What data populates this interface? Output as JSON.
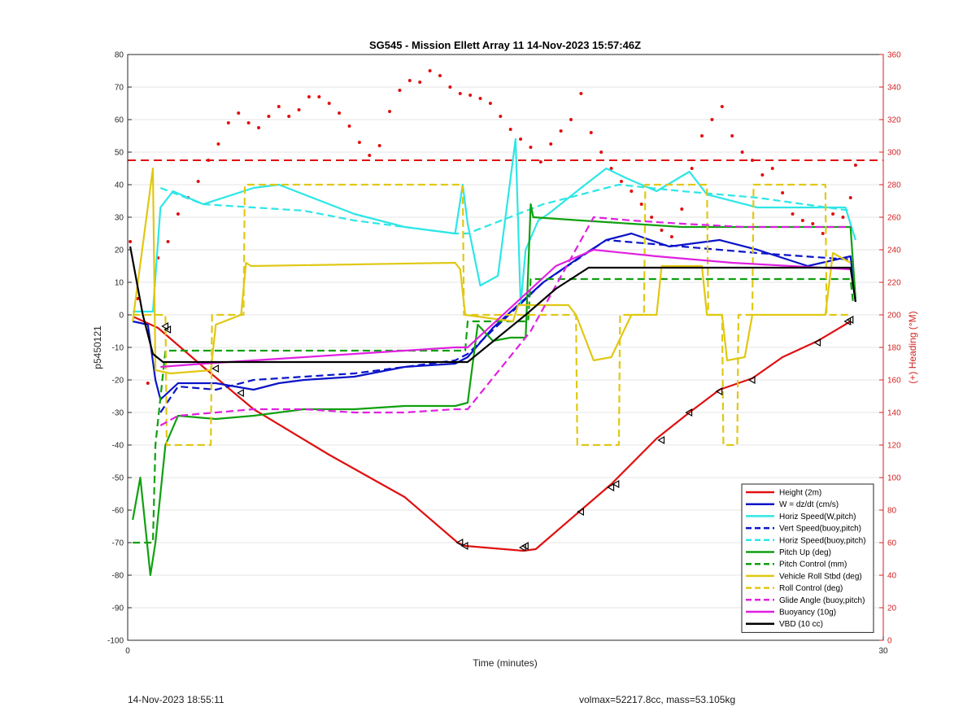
{
  "footer": {
    "timestamp": "14-Nov-2023 18:55:11",
    "mass_info": "volmax=52217.8cc, mass=53.105kg"
  },
  "chart_data": {
    "type": "line",
    "title": "SG545 - Mission Ellett Array 11 14-Nov-2023 15:57:46Z",
    "xlabel": "Time (minutes)",
    "ylabel": "p5450121",
    "y2label": "(+) Heading (°M)",
    "xlim": [
      0,
      30
    ],
    "ylim": [
      -100,
      80
    ],
    "y2lim": [
      0,
      360
    ],
    "x_ticks": [
      0,
      30
    ],
    "y_ticks": [
      -100,
      -90,
      -80,
      -70,
      -60,
      -50,
      -40,
      -30,
      -20,
      -10,
      0,
      10,
      20,
      30,
      40,
      50,
      60,
      70,
      80
    ],
    "y2_ticks": [
      0,
      20,
      40,
      60,
      80,
      100,
      120,
      140,
      160,
      180,
      200,
      220,
      240,
      260,
      280,
      300,
      320,
      340,
      360
    ],
    "legend_position": "bottom-right",
    "colors": {
      "red": "#e01010",
      "blue": "#0a14c8",
      "cyan": "#2ee6e6",
      "green": "#10a010",
      "yellow": "#e0c814",
      "magenta": "#e020e0",
      "black": "#000000",
      "axis_right": "#d22222"
    },
    "series": [
      {
        "name": "Height (2m)",
        "color": "#e01010",
        "style": "solid",
        "x": [
          0.2,
          1.2,
          3,
          5,
          8,
          11,
          13.1,
          13.4,
          15.7,
          16.2,
          18,
          19.2,
          21,
          22.3,
          23.5,
          24.8,
          26,
          27.4,
          28.7
        ],
        "y": [
          -0.5,
          -4,
          -16,
          -29,
          -43,
          -56,
          -70,
          -71,
          -72.5,
          -72,
          -60,
          -52,
          -38,
          -30,
          -23,
          -19.5,
          -13,
          -8,
          -2
        ]
      },
      {
        "name": "W = dz/dt (cm/s)",
        "color": "#0a14c8",
        "style": "solid",
        "x": [
          0.2,
          0.8,
          1.1,
          1.3,
          2,
          3.5,
          5,
          6,
          7,
          9,
          11,
          13,
          13.5,
          14.5,
          15.5,
          16.5,
          18,
          19,
          20,
          21.5,
          22.5,
          23.5,
          25,
          27,
          28.7,
          28.9
        ],
        "y": [
          -2,
          -3,
          -20,
          -26,
          -21,
          -21,
          -23,
          -21,
          -20,
          -19,
          -16,
          -15,
          -13,
          -4,
          3,
          10,
          18,
          23,
          25,
          21,
          22,
          23,
          20,
          15,
          18,
          4
        ]
      },
      {
        "name": "Horiz Speed(W,pitch)",
        "color": "#2ee6e6",
        "style": "solid",
        "x": [
          0.2,
          1.0,
          1.3,
          1.8,
          3,
          5,
          6,
          7,
          9,
          11,
          13,
          13.3,
          13.5,
          14,
          14.7,
          15.4,
          15.6,
          15.8,
          16.3,
          16.7,
          18,
          19,
          19.8,
          21,
          22.3,
          23,
          25,
          27,
          28.5,
          28.9
        ],
        "y": [
          1,
          1,
          33,
          38,
          34,
          39,
          40,
          37,
          31,
          27,
          25,
          40,
          28,
          9,
          12,
          54,
          3,
          20,
          29,
          31,
          39,
          45,
          42,
          38,
          44,
          37,
          33,
          33,
          33,
          23
        ]
      },
      {
        "name": "Vert Speed(buoy,pitch)",
        "color": "#0a14c8",
        "style": "dashed",
        "x": [
          1.3,
          2,
          3.5,
          5,
          7,
          9,
          11,
          13,
          13.5,
          16.5,
          19,
          22,
          25,
          28.7
        ],
        "y": [
          -30,
          -22,
          -23,
          -20,
          -19,
          -18,
          -16,
          -14,
          -12,
          10,
          23,
          21,
          19,
          17
        ]
      },
      {
        "name": "Horiz Speed(buoy,pitch)",
        "color": "#2ee6e6",
        "style": "dashed",
        "x": [
          1.3,
          3,
          5,
          7,
          9,
          11,
          13,
          13.5,
          16.5,
          19.5,
          22,
          25,
          28.7
        ],
        "y": [
          39,
          34,
          33,
          32,
          29,
          27,
          25,
          25,
          34,
          40,
          38,
          36,
          32
        ]
      },
      {
        "name": "Pitch Up (deg)",
        "color": "#10a010",
        "style": "solid",
        "x": [
          0.2,
          0.5,
          0.9,
          1.1,
          1.5,
          2,
          3.5,
          5,
          7,
          9,
          11,
          13,
          13.5,
          13.9,
          14.5,
          15.2,
          15.8,
          16,
          16.1,
          18,
          20,
          22,
          25,
          28.7,
          28.9
        ],
        "y": [
          -63,
          -50,
          -80,
          -70,
          -40,
          -31,
          -32,
          -31,
          -29,
          -29,
          -28,
          -28,
          -27,
          -3,
          -8,
          -7,
          -7,
          34,
          30,
          29,
          28,
          27,
          27,
          27,
          5
        ]
      },
      {
        "name": "Pitch Control (mm)",
        "color": "#10a010",
        "style": "dashed",
        "x": [
          0.2,
          1.0,
          1.1,
          1.5,
          13.4,
          13.5,
          15.9,
          16.0,
          28.7,
          28.8
        ],
        "y": [
          -70,
          -70,
          -40,
          -11,
          -11,
          -2,
          -2,
          11,
          11,
          4
        ]
      },
      {
        "name": "Vehicle Roll Stbd (deg)",
        "color": "#e0c814",
        "style": "solid",
        "x": [
          0.2,
          1.0,
          1.1,
          1.7,
          3.3,
          3.5,
          4.5,
          4.7,
          4.9,
          13,
          13.2,
          13.4,
          15.3,
          15.5,
          17.5,
          17.8,
          18.5,
          19.2,
          20,
          21,
          21.2,
          22.8,
          23,
          23.6,
          23.8,
          24.5,
          24.8,
          25.3,
          27.7,
          28,
          28.7
        ],
        "y": [
          -2,
          45,
          -17,
          -18,
          -17,
          -3,
          0,
          16,
          15,
          16,
          14,
          0,
          -2,
          3,
          3,
          0,
          -14,
          -13,
          0,
          0,
          15,
          15,
          0,
          0,
          -14,
          -13,
          0,
          0,
          0,
          19,
          16
        ]
      },
      {
        "name": "Roll Control (deg)",
        "color": "#e0c814",
        "style": "dashed",
        "x": [
          0.2,
          1.5,
          1.55,
          3.3,
          3.35,
          4.6,
          4.65,
          13.3,
          13.35,
          17.8,
          17.85,
          19.5,
          19.55,
          20.5,
          20.55,
          23,
          23.05,
          23.6,
          23.65,
          24.2,
          24.25,
          24.8,
          24.85,
          27.7,
          27.75,
          28.7
        ],
        "y": [
          0,
          0,
          -40,
          -40,
          0,
          0,
          40,
          40,
          0,
          0,
          -40,
          -40,
          0,
          0,
          40,
          40,
          0,
          0,
          -40,
          -40,
          0,
          0,
          40,
          40,
          0,
          0
        ]
      },
      {
        "name": "Glide Angle (buoy,pitch)",
        "color": "#e020e0",
        "style": "dashed",
        "x": [
          1.3,
          2,
          3.5,
          5,
          7,
          9,
          11,
          13,
          13.5,
          16,
          18.5,
          20,
          22,
          24.5,
          28.7
        ],
        "y": [
          -34,
          -31,
          -30,
          -29,
          -29,
          -30,
          -30,
          -29,
          -29,
          -5,
          30,
          29,
          28,
          27,
          27
        ]
      },
      {
        "name": "Buoyancy (10g)",
        "color": "#e020e0",
        "style": "solid",
        "x": [
          1.3,
          3,
          5,
          7,
          9,
          11,
          13,
          13.5,
          17,
          18.5,
          21,
          24,
          28.7
        ],
        "y": [
          -16,
          -15,
          -14,
          -13,
          -12,
          -11,
          -10,
          -10,
          15,
          20,
          18,
          16,
          14
        ]
      },
      {
        "name": "VBD (10 cc)",
        "color": "#000000",
        "style": "solid",
        "x": [
          0.1,
          0.6,
          1.0,
          1.4,
          3,
          13,
          13.5,
          15.8,
          17,
          18.3,
          20,
          28.7,
          28.9
        ],
        "y": [
          21,
          0,
          -12,
          -14.5,
          -14.5,
          -14.5,
          -14.5,
          0,
          8,
          14.5,
          14.5,
          14.5,
          4
        ]
      }
    ],
    "heading_reference": {
      "name": "Heading reference",
      "color": "#e01010",
      "style": "dashed",
      "y2": 295
    },
    "heading_points": {
      "color": "#e01010",
      "style": "dotted",
      "axis": "right",
      "x": [
        0.1,
        0.4,
        0.8,
        1.2,
        1.6,
        2.0,
        2.4,
        2.8,
        3.2,
        3.6,
        4.0,
        4.4,
        4.8,
        5.2,
        5.6,
        6.0,
        6.4,
        6.8,
        7.2,
        7.6,
        8.0,
        8.4,
        8.8,
        9.2,
        9.6,
        10.0,
        10.4,
        10.8,
        11.2,
        11.6,
        12.0,
        12.4,
        12.8,
        13.2,
        13.6,
        14.0,
        14.4,
        14.8,
        15.2,
        15.6,
        16.0,
        16.4,
        16.8,
        17.2,
        17.6,
        18.0,
        18.4,
        18.8,
        19.2,
        19.6,
        20.0,
        20.4,
        20.8,
        21.2,
        21.6,
        22.0,
        22.4,
        22.8,
        23.2,
        23.6,
        24.0,
        24.4,
        24.8,
        25.2,
        25.6,
        26.0,
        26.4,
        26.8,
        27.2,
        27.6,
        28.0,
        28.4,
        28.7,
        28.9
      ],
      "y2": [
        245,
        210,
        158,
        235,
        245,
        262,
        272,
        282,
        295,
        305,
        318,
        324,
        318,
        315,
        322,
        328,
        322,
        326,
        334,
        334,
        330,
        324,
        316,
        306,
        298,
        304,
        325,
        338,
        344,
        343,
        350,
        347,
        340,
        336,
        335,
        333,
        330,
        322,
        314,
        308,
        303,
        294,
        305,
        313,
        320,
        336,
        312,
        300,
        290,
        282,
        276,
        268,
        260,
        252,
        248,
        265,
        290,
        310,
        320,
        328,
        310,
        300,
        295,
        286,
        290,
        275,
        262,
        258,
        256,
        250,
        262,
        260,
        272,
        292
      ]
    },
    "height_markers": {
      "color": "#000000",
      "style": "triangle-left",
      "x": [
        1.5,
        1.6,
        3.5,
        4.5,
        13.2,
        13.4,
        15.7,
        15.8,
        18,
        19.2,
        19.4,
        21.2,
        22.3,
        23.5,
        24.8,
        27.4,
        28.6,
        28.7
      ],
      "y": [
        -3.5,
        -4.5,
        -16.5,
        -24,
        -70,
        -71,
        -71.5,
        -71,
        -60.5,
        -53,
        -52,
        -38.5,
        -30,
        -23.5,
        -20,
        -8.5,
        -2,
        -1.5
      ]
    }
  }
}
